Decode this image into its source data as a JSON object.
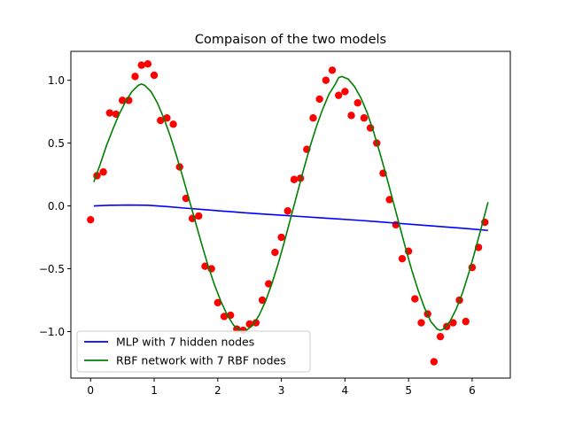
{
  "chart_data": {
    "type": "scatter",
    "title": "Compaison of the two models",
    "xlabel": "",
    "ylabel": "",
    "xlim": [
      -0.31,
      6.6
    ],
    "ylim": [
      -1.37,
      1.23
    ],
    "xticks": [
      0,
      1,
      2,
      3,
      4,
      5,
      6
    ],
    "yticks": [
      -1.0,
      -0.5,
      0.0,
      0.5,
      1.0
    ],
    "ytick_labels": [
      "−1.0",
      "−0.5",
      "0.0",
      "0.5",
      "1.0"
    ],
    "grid": false,
    "legend_position": "lower-left",
    "scatter": {
      "name": "",
      "color": "#ff0000",
      "x": [
        0.0,
        0.1,
        0.2,
        0.3,
        0.4,
        0.5,
        0.6,
        0.7,
        0.8,
        0.9,
        1.0,
        1.1,
        1.2,
        1.3,
        1.4,
        1.5,
        1.6,
        1.7,
        1.8,
        1.9,
        2.0,
        2.1,
        2.2,
        2.3,
        2.4,
        2.5,
        2.6,
        2.7,
        2.8,
        2.9,
        3.0,
        3.1,
        3.2,
        3.3,
        3.4,
        3.5,
        3.6,
        3.7,
        3.8,
        3.9,
        4.0,
        4.1,
        4.2,
        4.3,
        4.4,
        4.5,
        4.6,
        4.7,
        4.8,
        4.9,
        5.0,
        5.1,
        5.2,
        5.3,
        5.4,
        5.5,
        5.6,
        5.7,
        5.8,
        5.9,
        6.0,
        6.1,
        6.2
      ],
      "y": [
        -0.11,
        0.24,
        0.27,
        0.74,
        0.73,
        0.84,
        0.84,
        1.03,
        1.12,
        1.13,
        1.04,
        0.68,
        0.7,
        0.65,
        0.31,
        0.06,
        -0.1,
        -0.08,
        -0.48,
        -0.5,
        -0.77,
        -0.88,
        -0.87,
        -0.98,
        -0.99,
        -0.94,
        -0.93,
        -0.75,
        -0.62,
        -0.37,
        -0.25,
        -0.04,
        0.21,
        0.22,
        0.45,
        0.7,
        0.85,
        1.0,
        1.08,
        0.88,
        0.91,
        0.72,
        0.82,
        0.7,
        0.62,
        0.5,
        0.26,
        0.05,
        -0.15,
        -0.42,
        -0.36,
        -0.74,
        -0.93,
        -0.86,
        -1.24,
        -1.04,
        -0.96,
        -0.93,
        -0.75,
        -0.92,
        -0.49,
        -0.33,
        -0.13
      ]
    },
    "series": [
      {
        "name": "MLP with 7 hidden nodes",
        "color": "#0000ff",
        "x": [
          0.05,
          0.3,
          0.6,
          0.9,
          1.2,
          1.5,
          1.8,
          2.1,
          2.4,
          2.7,
          3.0,
          3.3,
          3.6,
          3.9,
          4.2,
          4.5,
          4.8,
          5.1,
          5.4,
          5.7,
          6.0,
          6.25
        ],
        "y": [
          0.0,
          0.005,
          0.007,
          0.005,
          -0.005,
          -0.018,
          -0.03,
          -0.042,
          -0.054,
          -0.064,
          -0.074,
          -0.084,
          -0.094,
          -0.104,
          -0.114,
          -0.125,
          -0.137,
          -0.149,
          -0.16,
          -0.172,
          -0.184,
          -0.195
        ]
      },
      {
        "name": "RBF network with 7 RBF nodes",
        "color": "#008000",
        "x": [
          0.05,
          0.15,
          0.25,
          0.35,
          0.45,
          0.55,
          0.65,
          0.75,
          0.8,
          0.85,
          0.95,
          1.05,
          1.15,
          1.25,
          1.35,
          1.45,
          1.55,
          1.65,
          1.75,
          1.85,
          1.95,
          2.05,
          2.15,
          2.25,
          2.35,
          2.4,
          2.45,
          2.55,
          2.65,
          2.75,
          2.85,
          2.95,
          3.05,
          3.15,
          3.25,
          3.35,
          3.45,
          3.55,
          3.65,
          3.75,
          3.85,
          3.9,
          3.95,
          4.05,
          4.15,
          4.25,
          4.35,
          4.45,
          4.55,
          4.65,
          4.75,
          4.85,
          4.95,
          5.05,
          5.15,
          5.25,
          5.35,
          5.45,
          5.5,
          5.55,
          5.65,
          5.75,
          5.85,
          5.95,
          6.05,
          6.15,
          6.25
        ],
        "y": [
          0.19,
          0.33,
          0.48,
          0.61,
          0.73,
          0.83,
          0.91,
          0.96,
          0.97,
          0.96,
          0.91,
          0.82,
          0.7,
          0.56,
          0.4,
          0.23,
          0.05,
          -0.13,
          -0.31,
          -0.48,
          -0.63,
          -0.76,
          -0.87,
          -0.95,
          -0.99,
          -1.0,
          -0.99,
          -0.95,
          -0.87,
          -0.76,
          -0.62,
          -0.46,
          -0.28,
          -0.09,
          0.1,
          0.29,
          0.47,
          0.63,
          0.77,
          0.89,
          0.97,
          1.02,
          1.03,
          1.01,
          0.95,
          0.86,
          0.74,
          0.59,
          0.42,
          0.24,
          0.05,
          -0.14,
          -0.33,
          -0.51,
          -0.67,
          -0.81,
          -0.92,
          -0.98,
          -0.99,
          -0.98,
          -0.92,
          -0.82,
          -0.69,
          -0.53,
          -0.35,
          -0.16,
          0.03
        ]
      }
    ]
  }
}
